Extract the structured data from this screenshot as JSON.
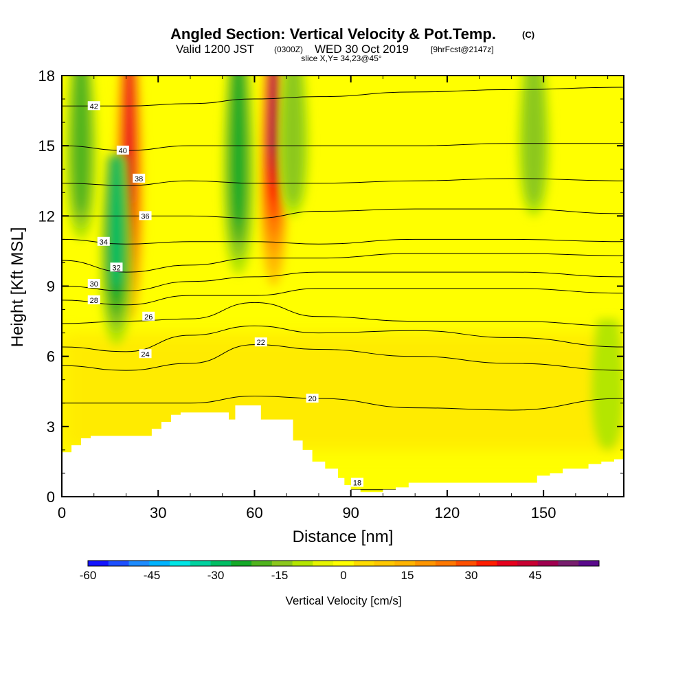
{
  "title": {
    "main": "Angled Section: Vertical Velocity & Pot.Temp.",
    "main_unit": "(C)",
    "valid_prefix": "Valid 1200 JST",
    "valid_zulu": "(0300Z)",
    "valid_date": "WED 30 Oct 2019",
    "valid_forecast": "[9hrFcst@2147z]",
    "slice": "slice X,Y= 34,23@45°"
  },
  "chart_data": {
    "type": "heatmap",
    "xlabel": "Distance [nm]",
    "ylabel": "Height [Kft MSL]",
    "xlim": [
      0,
      175
    ],
    "ylim": [
      0,
      18
    ],
    "xticks": [
      0,
      30,
      60,
      90,
      120,
      150
    ],
    "yticks": [
      0,
      3,
      6,
      9,
      12,
      15,
      18
    ],
    "colorbar": {
      "label": "Vertical Velocity [cm/s]",
      "min": -60,
      "max": 55,
      "step": 5,
      "tick_values": [
        -60,
        -45,
        -30,
        -15,
        0,
        15,
        30,
        45
      ],
      "colors": [
        "#1414ff",
        "#1e50ff",
        "#1e8cff",
        "#00b4ff",
        "#00e6e6",
        "#00d2a0",
        "#00be64",
        "#14aa28",
        "#50b41e",
        "#8cc81e",
        "#b4e600",
        "#e6f500",
        "#ffff00",
        "#ffdc00",
        "#ffc800",
        "#ffb400",
        "#ff9600",
        "#ff7800",
        "#ff5000",
        "#ff1e00",
        "#e6001e",
        "#c80032",
        "#a00050",
        "#781e6e",
        "#5a0a8c"
      ]
    },
    "features": [
      {
        "kind": "updraft",
        "x_center": 21,
        "y_bottom": 7.5,
        "y_top": 18,
        "peak_cm_s": 35
      },
      {
        "kind": "updraft",
        "x_center": 66,
        "y_bottom": 9,
        "y_top": 18,
        "peak_cm_s": 45
      },
      {
        "kind": "downdraft",
        "x_center": 17,
        "y_bottom": 6.5,
        "y_top": 14,
        "peak_cm_s": -25
      },
      {
        "kind": "downdraft",
        "x_center": 55,
        "y_bottom": 9.5,
        "y_top": 18,
        "peak_cm_s": -22
      },
      {
        "kind": "downdraft",
        "x_center": 6,
        "y_bottom": 11,
        "y_top": 18,
        "peak_cm_s": -15
      },
      {
        "kind": "downdraft",
        "x_center": 72,
        "y_bottom": 12,
        "y_top": 18,
        "peak_cm_s": -10
      },
      {
        "kind": "downdraft",
        "x_center": 147,
        "y_bottom": 12,
        "y_top": 18,
        "peak_cm_s": -10
      },
      {
        "kind": "downdraft",
        "x_center": 170,
        "y_bottom": 2,
        "y_top": 7,
        "peak_cm_s": -8
      }
    ],
    "terrain": {
      "x": [
        0,
        3,
        6,
        9,
        14,
        20,
        25,
        28,
        31,
        34,
        37,
        42,
        46,
        50,
        52,
        54,
        58,
        62,
        65,
        68,
        72,
        75,
        78,
        82,
        86,
        88,
        90,
        93,
        97,
        100,
        104,
        108,
        112,
        116,
        120,
        124,
        128,
        132,
        136,
        140,
        144,
        148,
        152,
        156,
        160,
        164,
        168,
        172,
        175
      ],
      "height": [
        1.9,
        2.2,
        2.5,
        2.6,
        2.6,
        2.6,
        2.6,
        2.9,
        3.2,
        3.5,
        3.6,
        3.6,
        3.6,
        3.6,
        3.3,
        3.9,
        3.9,
        3.3,
        3.3,
        3.3,
        2.4,
        2.0,
        1.5,
        1.2,
        0.8,
        0.5,
        0.3,
        0.2,
        0.2,
        0.3,
        0.4,
        0.6,
        0.6,
        0.6,
        0.6,
        0.6,
        0.6,
        0.6,
        0.6,
        0.6,
        0.6,
        0.9,
        1.0,
        1.2,
        1.2,
        1.4,
        1.5,
        1.6,
        1.6
      ]
    },
    "isentropes": [
      {
        "value": 18,
        "label_pos": [
          92,
          0.6
        ],
        "y": [
          0.3,
          0.3,
          0.3,
          0.3,
          0.3,
          0.3,
          0.3,
          0.3
        ]
      },
      {
        "value": 20,
        "label_pos": [
          78,
          4.2
        ],
        "y": [
          4.0,
          4.0,
          4.0,
          4.3,
          4.2,
          3.8,
          3.7,
          4.2
        ]
      },
      {
        "value": 22,
        "label_pos": [
          62,
          6.6
        ],
        "y": [
          5.6,
          5.4,
          5.7,
          6.5,
          6.3,
          6.0,
          5.7,
          5.4
        ]
      },
      {
        "value": 24,
        "label_pos": [
          26,
          6.1
        ],
        "y": [
          6.4,
          6.2,
          6.9,
          7.3,
          7.0,
          7.1,
          6.8,
          6.4
        ]
      },
      {
        "value": 26,
        "label_pos": [
          27,
          7.7
        ],
        "y": [
          7.4,
          7.5,
          7.6,
          8.3,
          7.7,
          7.5,
          7.5,
          7.3
        ]
      },
      {
        "value": 28,
        "label_pos": [
          10,
          8.4
        ],
        "y": [
          8.4,
          8.2,
          8.6,
          8.6,
          8.9,
          8.9,
          8.9,
          8.7
        ]
      },
      {
        "value": 30,
        "label_pos": [
          10,
          9.1
        ],
        "y": [
          9.0,
          8.8,
          9.2,
          9.4,
          9.6,
          9.6,
          9.6,
          9.4
        ]
      },
      {
        "value": 32,
        "label_pos": [
          17,
          9.8
        ],
        "y": [
          10.1,
          9.6,
          9.9,
          10.2,
          10.2,
          10.4,
          10.4,
          10.3
        ]
      },
      {
        "value": 34,
        "label_pos": [
          13,
          10.9
        ],
        "y": [
          11.0,
          10.8,
          10.9,
          10.9,
          10.8,
          11.0,
          11.0,
          10.9
        ]
      },
      {
        "value": 36,
        "label_pos": [
          26,
          12.0
        ],
        "y": [
          12.0,
          12.0,
          12.0,
          11.9,
          12.2,
          12.3,
          12.3,
          12.1
        ]
      },
      {
        "value": 38,
        "label_pos": [
          24,
          13.6
        ],
        "y": [
          13.4,
          13.3,
          13.5,
          13.4,
          13.4,
          13.5,
          13.6,
          13.5
        ]
      },
      {
        "value": 40,
        "label_pos": [
          19,
          14.8
        ],
        "y": [
          15.0,
          14.8,
          15.0,
          15.0,
          15.0,
          15.0,
          15.1,
          15.1
        ]
      },
      {
        "value": 42,
        "label_pos": [
          10,
          16.7
        ],
        "y": [
          16.7,
          16.7,
          16.8,
          17.0,
          17.1,
          17.3,
          17.4,
          17.5
        ]
      }
    ],
    "isentrope_x": [
      0,
      20,
      40,
      60,
      80,
      110,
      140,
      175
    ]
  }
}
